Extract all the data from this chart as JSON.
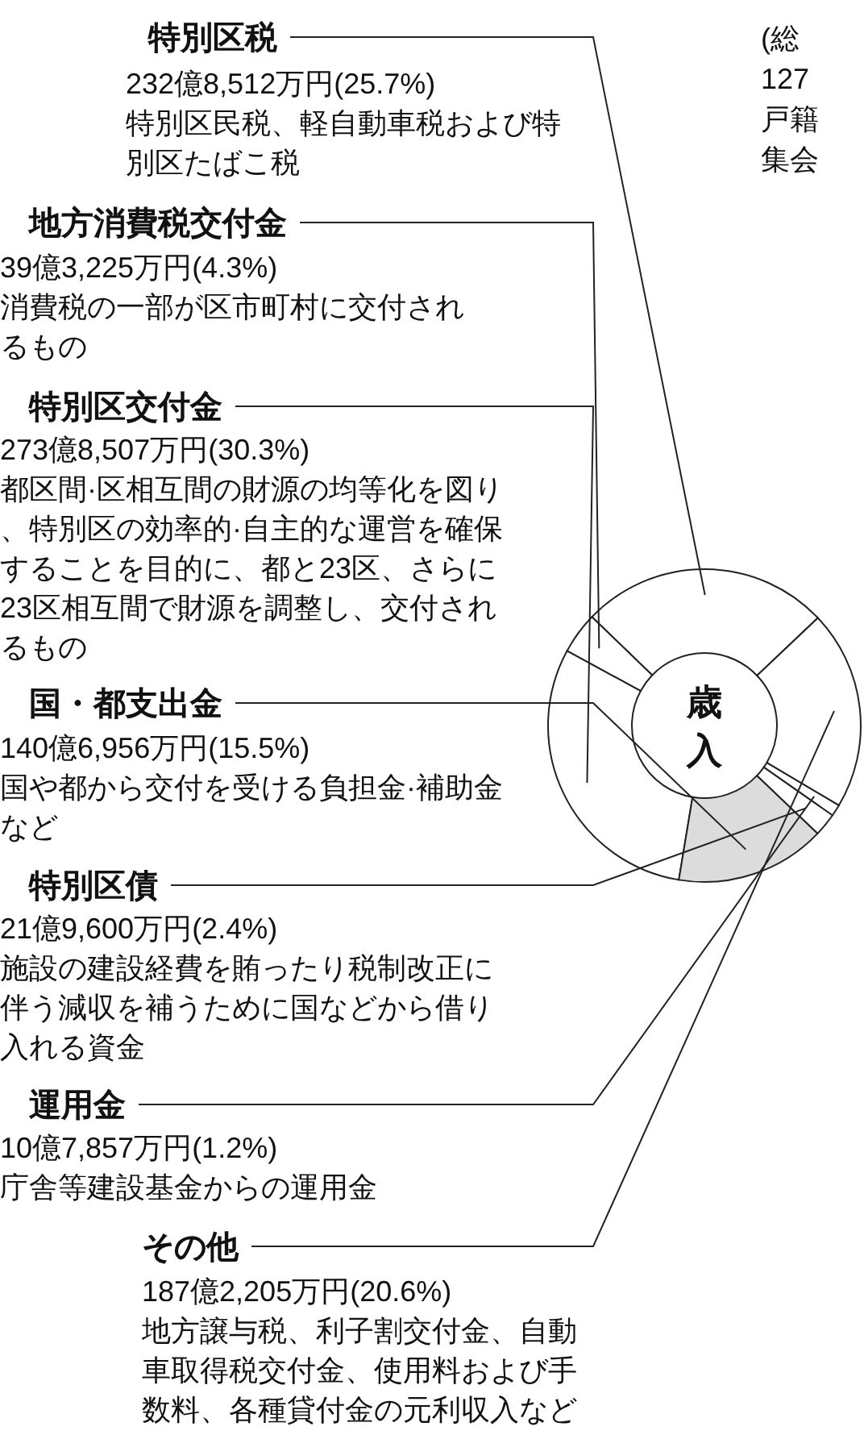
{
  "chart_data": {
    "type": "donut",
    "categories": [
      "特別区税",
      "地方消費税交付金",
      "特別区交付金",
      "国・都支出金",
      "特別区債",
      "運用金",
      "その他"
    ],
    "values": [
      25.7,
      4.3,
      30.3,
      15.5,
      2.4,
      1.2,
      20.6
    ],
    "colors": [
      "#ffffff",
      "#ffffff",
      "#ffffff",
      "#dcdcdc",
      "#ffffff",
      "#ffffff",
      "#ffffff"
    ],
    "value_labels": [
      "232億8,512万円(25.7%)",
      "39億3,225万円(4.3%)",
      "273億8,507万円(30.3%)",
      "140億6,956万円(15.5%)",
      "21億9,600万円(2.4%)",
      "10億7,857万円(1.2%)",
      "187億2,205万円(20.6%)"
    ],
    "annotations": [
      "歳入",
      "(総",
      "127",
      "戸籍",
      "集会",
      {
        "text": "特別区民税、軽自動車税および特別区たばこ税",
        "x": "特別区税"
      },
      {
        "text": "消費税の一部が区市町村に交付されるもの",
        "x": "地方消費税交付金"
      },
      {
        "text": "都区間·区相互間の財源の均等化を図り、特別区の効率的·自主的な運営を確保することを目的に、都と23区、さらに23区相互間で財源を調整し、交付されるもの",
        "x": "特別区交付金"
      },
      {
        "text": "国や都から交付を受ける負担金·補助金など",
        "x": "国・都支出金"
      },
      {
        "text": "施設の建設経費を賄ったり税制改正に伴う減収を補うために国などから借り入れる資金",
        "x": "特別区債"
      },
      {
        "text": "庁舎等建設基金からの運用金",
        "x": "運用金"
      },
      {
        "text": "地方譲与税、利子割交付金、自動車取得税交付金、使用料および手数料、各種貸付金の元利収入など",
        "x": "その他"
      }
    ]
  }
}
